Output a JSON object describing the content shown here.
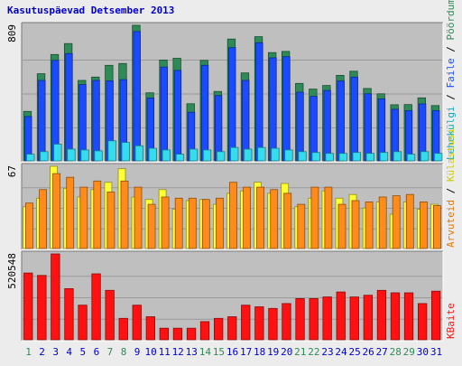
{
  "chart_data": {
    "title": "Kasutuspäevad Detsember 2013",
    "type": "bar",
    "x": [
      "1",
      "2",
      "3",
      "4",
      "5",
      "6",
      "7",
      "8",
      "9",
      "10",
      "11",
      "12",
      "13",
      "14",
      "15",
      "16",
      "17",
      "18",
      "19",
      "20",
      "21",
      "22",
      "23",
      "24",
      "25",
      "26",
      "27",
      "28",
      "29",
      "30",
      "31"
    ],
    "weekend_days": [
      "1",
      "7",
      "8",
      "14",
      "15",
      "21",
      "22",
      "28",
      "29"
    ],
    "panels": [
      {
        "id": "top",
        "ymax_label": "809",
        "ymax": 809,
        "series": [
          {
            "name": "Pöördumisi",
            "color": "#2e8b57",
            "values": [
              295,
              520,
              635,
              700,
              480,
              500,
              570,
              581,
              809,
              406,
              602,
              612,
              341,
              600,
              414,
              727,
              525,
              741,
              646,
              653,
              462,
              428,
              450,
              510,
              535,
              432,
              400,
              335,
              336,
              376,
              330
            ]
          },
          {
            "name": "Faile",
            "color": "#1a4bff",
            "values": [
              265,
              480,
              600,
              640,
              455,
              480,
              478,
              485,
              772,
              375,
              560,
              540,
              290,
              570,
              390,
              676,
              480,
              705,
              615,
              622,
              410,
              385,
              420,
              477,
              500,
              400,
              370,
              308,
              300,
              340,
              300
            ]
          },
          {
            "name": "Lehekülgi",
            "color": "#33ddee",
            "values": [
              40,
              55,
              100,
              70,
              65,
              60,
              120,
              110,
              90,
              75,
              65,
              40,
              70,
              65,
              55,
              80,
              70,
              80,
              75,
              65,
              55,
              50,
              45,
              45,
              50,
              45,
              50,
              55,
              40,
              55,
              45
            ]
          }
        ],
        "legend": [
          "Pöördumisi",
          "Faile",
          "Lehekülgi"
        ]
      },
      {
        "id": "mid",
        "ymax_label": "67",
        "ymax": 67,
        "series": [
          {
            "name": "Külastusi",
            "color": "#ffff33",
            "values": [
              34,
              41,
              67,
              49,
              42,
              48,
              54,
              65,
              42,
              40,
              48,
              32,
              39,
              40,
              36,
              45,
              47,
              54,
              45,
              53,
              34,
              41,
              47,
              41,
              44,
              33,
              38,
              28,
              38,
              32,
              36
            ]
          },
          {
            "name": "Arvuteid",
            "color": "#ff8c1a",
            "values": [
              37,
              48,
              61,
              58,
              50,
              55,
              46,
              55,
              50,
              36,
              42,
              41,
              41,
              40,
              41,
              54,
              50,
              50,
              48,
              45,
              36,
              50,
              50,
              36,
              39,
              38,
              42,
              43,
              44,
              38,
              35
            ]
          }
        ],
        "legend": [
          "Külastusi",
          "Arvuteid"
        ]
      },
      {
        "id": "bot",
        "ymax_label": "520548",
        "ymax": 520548,
        "series": [
          {
            "name": "KBaite",
            "color": "#ff1111",
            "values": [
              405000,
              390000,
              520548,
              310000,
              210000,
              400000,
              300000,
              130000,
              210000,
              140000,
              70000,
              70000,
              70000,
              110000,
              130000,
              140000,
              210000,
              200000,
              190000,
              220000,
              250000,
              250000,
              260000,
              290000,
              260000,
              270000,
              300000,
              285000,
              285000,
              220000,
              295000
            ]
          }
        ],
        "legend": [
          "KBaite"
        ]
      }
    ],
    "colors": {
      "background": "#bfbfbf",
      "title": "#0000cc",
      "axis_text": "#000000",
      "weekday_label": "#0000cc",
      "weekend_label": "#2e8b57"
    }
  }
}
